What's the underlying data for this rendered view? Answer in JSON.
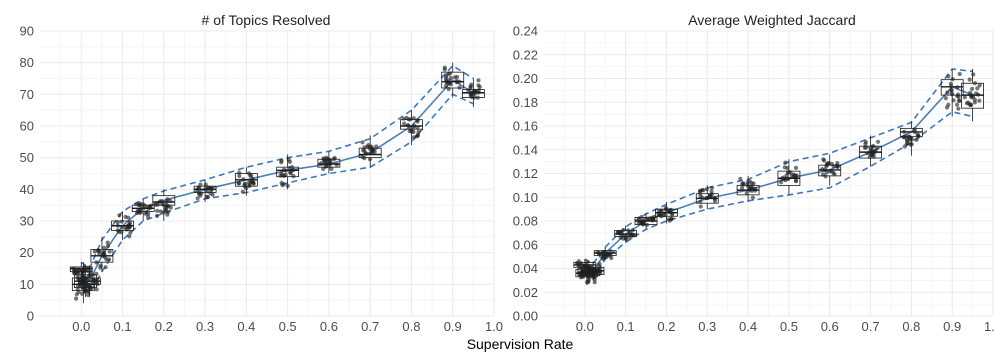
{
  "figure": {
    "xlabel": "Supervision Rate",
    "colors": {
      "mean_line": "#4a7fb8",
      "band_line": "#3a78c0",
      "box": "#1a1a1a",
      "points": "#222222",
      "grid": "#ebebeb"
    }
  },
  "chart_data": [
    {
      "type": "box",
      "title": "# of Topics Resolved",
      "xlabel": "Supervision Rate",
      "ylabel": "",
      "xlim": [
        -0.1,
        1.0
      ],
      "ylim": [
        0,
        90
      ],
      "x_ticks": [
        0.0,
        0.1,
        0.2,
        0.3,
        0.4,
        0.5,
        0.6,
        0.7,
        0.8,
        0.9,
        1.0
      ],
      "y_ticks": [
        0,
        10,
        20,
        30,
        40,
        50,
        60,
        70,
        80,
        90
      ],
      "grid": true,
      "boxes": [
        {
          "x": 0.0,
          "q1": 14,
          "median": 15,
          "q3": 15.5,
          "min": 12,
          "max": 17
        },
        {
          "x": 0.005,
          "q1": 8,
          "median": 10,
          "q3": 12,
          "min": 4,
          "max": 17
        },
        {
          "x": 0.01,
          "q1": 9,
          "median": 11,
          "q3": 13,
          "min": 6,
          "max": 15
        },
        {
          "x": 0.02,
          "q1": 10,
          "median": 11,
          "q3": 12,
          "min": 6,
          "max": 16
        },
        {
          "x": 0.05,
          "q1": 17,
          "median": 19,
          "q3": 21,
          "min": 14,
          "max": 25
        },
        {
          "x": 0.1,
          "q1": 27,
          "median": 28.5,
          "q3": 30,
          "min": 24,
          "max": 33
        },
        {
          "x": 0.15,
          "q1": 33,
          "median": 34,
          "q3": 35,
          "min": 30,
          "max": 37
        },
        {
          "x": 0.2,
          "q1": 35,
          "median": 36,
          "q3": 38,
          "min": 30,
          "max": 40
        },
        {
          "x": 0.3,
          "q1": 39,
          "median": 40,
          "q3": 41,
          "min": 36,
          "max": 43
        },
        {
          "x": 0.4,
          "q1": 41,
          "median": 43,
          "q3": 45,
          "min": 38,
          "max": 47
        },
        {
          "x": 0.5,
          "q1": 44,
          "median": 46,
          "q3": 47,
          "min": 40,
          "max": 51
        },
        {
          "x": 0.6,
          "q1": 47,
          "median": 48,
          "q3": 49.5,
          "min": 45,
          "max": 52
        },
        {
          "x": 0.7,
          "q1": 50,
          "median": 51,
          "q3": 53,
          "min": 47,
          "max": 57
        },
        {
          "x": 0.8,
          "q1": 59,
          "median": 60,
          "q3": 62,
          "min": 54,
          "max": 65
        },
        {
          "x": 0.9,
          "q1": 72,
          "median": 74,
          "q3": 77,
          "min": 69,
          "max": 80
        },
        {
          "x": 0.95,
          "q1": 69,
          "median": 70.5,
          "q3": 71.5,
          "min": 66,
          "max": 75
        }
      ],
      "mean_line": {
        "x": [
          0.0,
          0.02,
          0.05,
          0.1,
          0.15,
          0.2,
          0.3,
          0.4,
          0.5,
          0.6,
          0.7,
          0.8,
          0.9,
          0.95
        ],
        "y": [
          14,
          11,
          19,
          28.5,
          34,
          36.5,
          40,
          43,
          46,
          48,
          51.5,
          60,
          74.5,
          70.5
        ]
      },
      "band_upper": {
        "x": [
          0.0,
          0.02,
          0.05,
          0.1,
          0.15,
          0.2,
          0.3,
          0.4,
          0.5,
          0.6,
          0.7,
          0.8,
          0.9,
          0.95
        ],
        "y": [
          17,
          15,
          24,
          33,
          37,
          39.5,
          43,
          47,
          50,
          52,
          56,
          65,
          79,
          75
        ]
      },
      "band_lower": {
        "x": [
          0.0,
          0.02,
          0.05,
          0.1,
          0.15,
          0.2,
          0.3,
          0.4,
          0.5,
          0.6,
          0.7,
          0.8,
          0.9,
          0.95
        ],
        "y": [
          11,
          7,
          14,
          24,
          30,
          32.5,
          37,
          39,
          42,
          45,
          47,
          55,
          70,
          67
        ]
      }
    },
    {
      "type": "box",
      "title": "Average Weighted Jaccard",
      "xlabel": "Supervision Rate",
      "ylabel": "",
      "xlim": [
        -0.1,
        1.0
      ],
      "ylim": [
        0.0,
        0.24
      ],
      "x_ticks": [
        0.0,
        0.1,
        0.2,
        0.3,
        0.4,
        0.5,
        0.6,
        0.7,
        0.8,
        0.9,
        1.0
      ],
      "y_ticks": [
        0.0,
        0.02,
        0.04,
        0.06,
        0.08,
        0.1,
        0.12,
        0.14,
        0.16,
        0.18,
        0.2,
        0.22,
        0.24
      ],
      "grid": true,
      "boxes": [
        {
          "x": 0.0,
          "q1": 0.041,
          "median": 0.043,
          "q3": 0.045,
          "min": 0.036,
          "max": 0.048
        },
        {
          "x": 0.005,
          "q1": 0.033,
          "median": 0.036,
          "q3": 0.039,
          "min": 0.026,
          "max": 0.045
        },
        {
          "x": 0.01,
          "q1": 0.034,
          "median": 0.037,
          "q3": 0.04,
          "min": 0.028,
          "max": 0.044
        },
        {
          "x": 0.02,
          "q1": 0.035,
          "median": 0.038,
          "q3": 0.041,
          "min": 0.03,
          "max": 0.046
        },
        {
          "x": 0.05,
          "q1": 0.051,
          "median": 0.053,
          "q3": 0.055,
          "min": 0.047,
          "max": 0.058
        },
        {
          "x": 0.1,
          "q1": 0.067,
          "median": 0.069,
          "q3": 0.072,
          "min": 0.062,
          "max": 0.076
        },
        {
          "x": 0.15,
          "q1": 0.077,
          "median": 0.08,
          "q3": 0.083,
          "min": 0.073,
          "max": 0.087
        },
        {
          "x": 0.2,
          "q1": 0.084,
          "median": 0.087,
          "q3": 0.09,
          "min": 0.078,
          "max": 0.096
        },
        {
          "x": 0.3,
          "q1": 0.095,
          "median": 0.099,
          "q3": 0.103,
          "min": 0.09,
          "max": 0.11
        },
        {
          "x": 0.4,
          "q1": 0.102,
          "median": 0.106,
          "q3": 0.11,
          "min": 0.096,
          "max": 0.118
        },
        {
          "x": 0.5,
          "q1": 0.11,
          "median": 0.116,
          "q3": 0.122,
          "min": 0.102,
          "max": 0.132
        },
        {
          "x": 0.6,
          "q1": 0.118,
          "median": 0.123,
          "q3": 0.127,
          "min": 0.11,
          "max": 0.136
        },
        {
          "x": 0.7,
          "q1": 0.133,
          "median": 0.138,
          "q3": 0.143,
          "min": 0.126,
          "max": 0.152
        },
        {
          "x": 0.8,
          "q1": 0.151,
          "median": 0.155,
          "q3": 0.158,
          "min": 0.135,
          "max": 0.164
        },
        {
          "x": 0.9,
          "q1": 0.186,
          "median": 0.193,
          "q3": 0.199,
          "min": 0.168,
          "max": 0.208
        },
        {
          "x": 0.95,
          "q1": 0.175,
          "median": 0.186,
          "q3": 0.196,
          "min": 0.164,
          "max": 0.208
        }
      ],
      "mean_line": {
        "x": [
          0.0,
          0.02,
          0.05,
          0.1,
          0.15,
          0.2,
          0.3,
          0.4,
          0.5,
          0.6,
          0.7,
          0.8,
          0.9,
          0.95
        ],
        "y": [
          0.042,
          0.038,
          0.053,
          0.069,
          0.08,
          0.087,
          0.099,
          0.106,
          0.116,
          0.123,
          0.138,
          0.155,
          0.193,
          0.186
        ]
      },
      "band_upper": {
        "x": [
          0.0,
          0.02,
          0.05,
          0.1,
          0.15,
          0.2,
          0.3,
          0.4,
          0.5,
          0.6,
          0.7,
          0.8,
          0.9,
          0.95
        ],
        "y": [
          0.048,
          0.044,
          0.058,
          0.075,
          0.086,
          0.094,
          0.108,
          0.115,
          0.13,
          0.137,
          0.15,
          0.163,
          0.208,
          0.206
        ]
      },
      "band_lower": {
        "x": [
          0.0,
          0.02,
          0.05,
          0.1,
          0.15,
          0.2,
          0.3,
          0.4,
          0.5,
          0.6,
          0.7,
          0.8,
          0.9,
          0.95
        ],
        "y": [
          0.036,
          0.031,
          0.048,
          0.062,
          0.073,
          0.08,
          0.09,
          0.097,
          0.102,
          0.108,
          0.126,
          0.146,
          0.172,
          0.168
        ]
      }
    }
  ]
}
